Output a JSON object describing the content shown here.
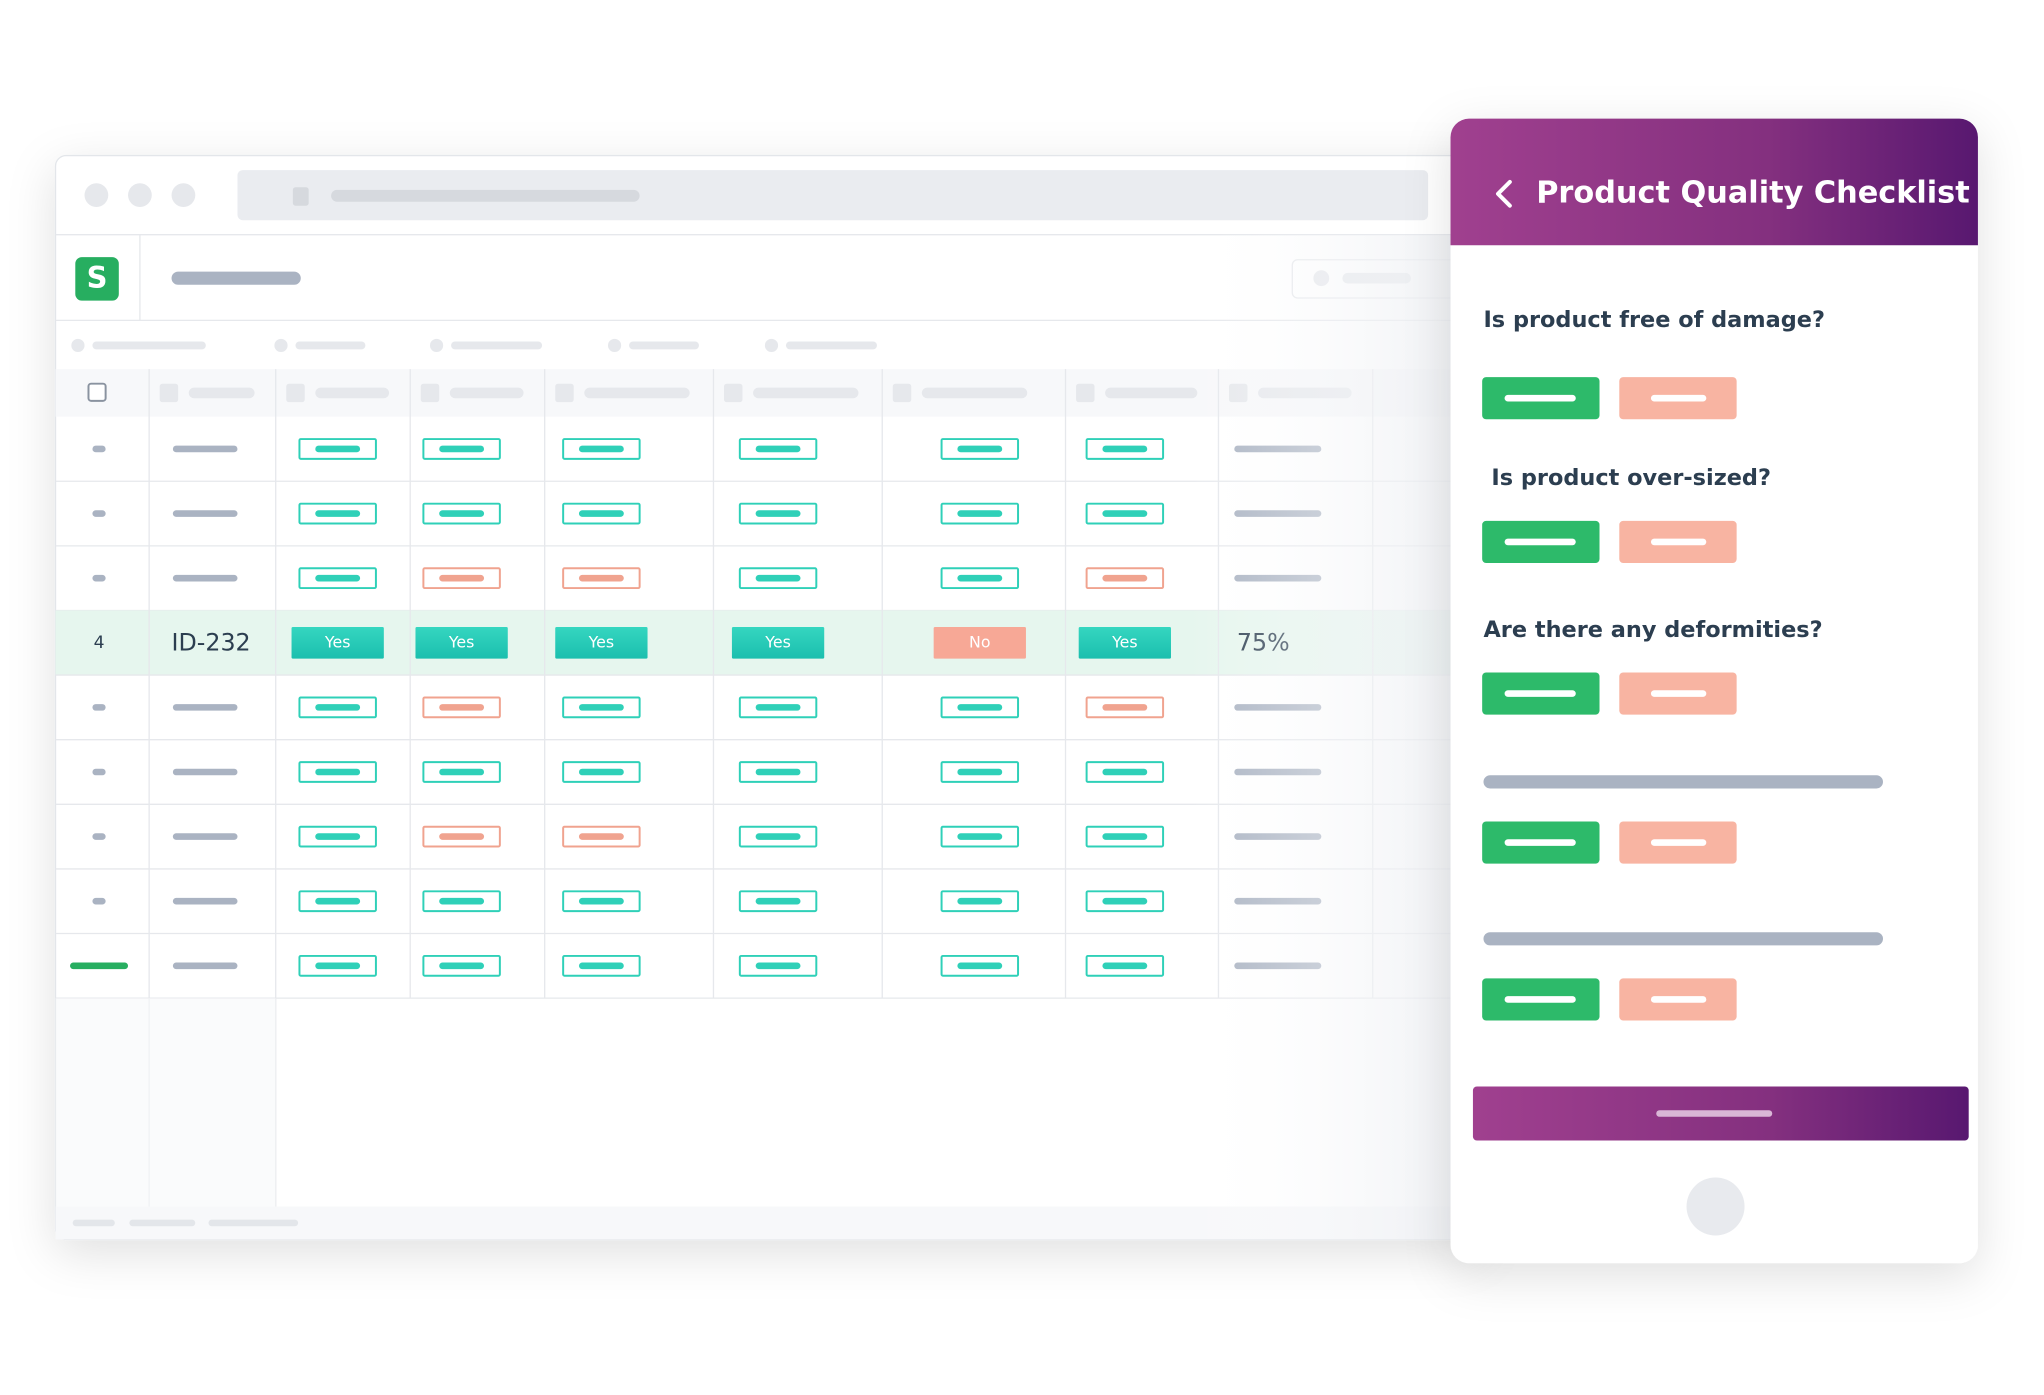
{
  "table": {
    "highlighted_row": {
      "number": "4",
      "id": "ID-232",
      "cells": [
        "Yes",
        "Yes",
        "Yes",
        "Yes",
        "No",
        "Yes"
      ],
      "score": "75%"
    }
  },
  "checklist": {
    "title": "Product Quality Checklist",
    "questions": [
      "Is product free of damage?",
      "Is product over-sized?",
      "Are there any deformities?"
    ]
  }
}
